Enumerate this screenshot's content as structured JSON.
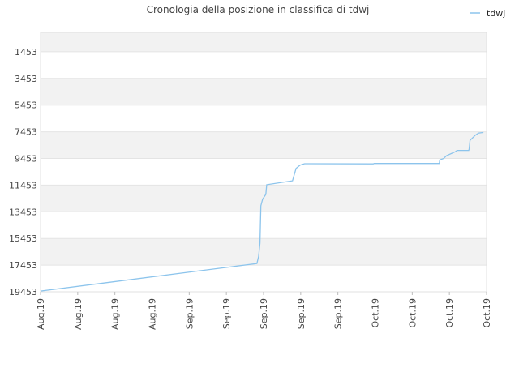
{
  "chart_data": {
    "type": "line",
    "title": "Cronologia della posizione in classifica di tdwj",
    "xlabel": "",
    "ylabel": "",
    "y_inverted": true,
    "ylim": [
      19453,
      0
    ],
    "y_ticks": [
      "1453",
      "3453",
      "5453",
      "7453",
      "9453",
      "11453",
      "13453",
      "15453",
      "17453",
      "19453"
    ],
    "x_ticks": [
      "Aug.19",
      "Aug.19",
      "Aug.19",
      "Aug.19",
      "Sep.19",
      "Sep.19",
      "Sep.19",
      "Sep.19",
      "Sep.19",
      "Oct.19",
      "Oct.19",
      "Oct.19",
      "Oct.19"
    ],
    "x_domain": [
      0,
      100
    ],
    "grid": "horizontal bands",
    "legend_position": "top-right",
    "series": [
      {
        "name": "tdwj",
        "color": "#8cc4ec",
        "points": [
          [
            0,
            19400
          ],
          [
            48.5,
            17330
          ],
          [
            48.9,
            16800
          ],
          [
            49.2,
            15800
          ],
          [
            49.3,
            14500
          ],
          [
            49.4,
            13000
          ],
          [
            49.8,
            12500
          ],
          [
            50.5,
            12150
          ],
          [
            50.7,
            11420
          ],
          [
            56.5,
            11130
          ],
          [
            57.3,
            10200
          ],
          [
            58.2,
            9950
          ],
          [
            59.2,
            9850
          ],
          [
            74.6,
            9860
          ],
          [
            74.8,
            9830
          ],
          [
            89.4,
            9830
          ],
          [
            89.5,
            9560
          ],
          [
            90.4,
            9450
          ],
          [
            91,
            9250
          ],
          [
            93,
            8950
          ],
          [
            93.4,
            8850
          ],
          [
            96,
            8850
          ],
          [
            96.1,
            8750
          ],
          [
            96.3,
            8100
          ],
          [
            97.5,
            7700
          ],
          [
            98.2,
            7550
          ],
          [
            99.3,
            7500
          ]
        ]
      }
    ]
  }
}
